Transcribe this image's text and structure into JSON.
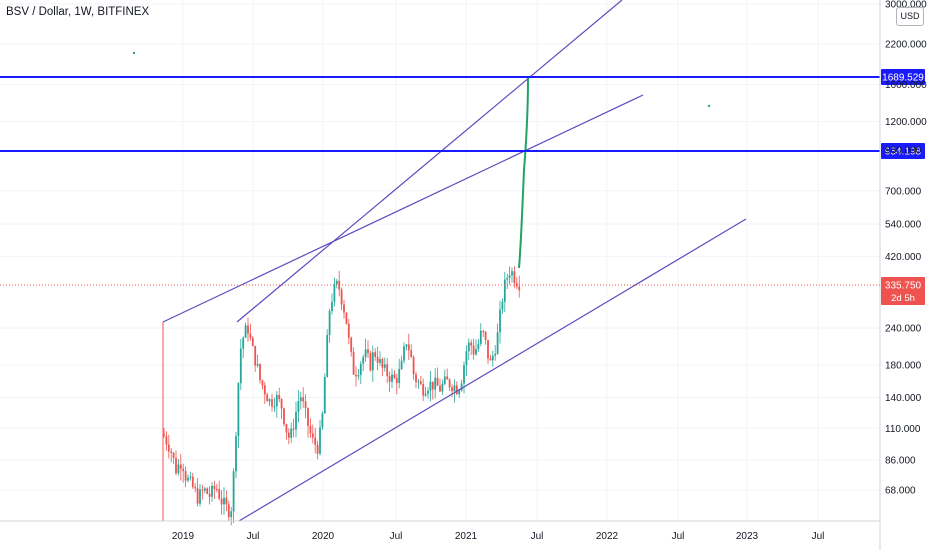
{
  "header": {
    "title": "BSV / Dollar, 1W, BITFINEX",
    "currency_label": "USD"
  },
  "colors": {
    "up": "#26a69a",
    "down": "#ef5350",
    "trendline": "#5b4cbf",
    "hline": "#1a1aff",
    "projection": "#21a366",
    "grid": "#f0f3fa",
    "axis_text": "#131722",
    "price_badge": "#ef5350"
  },
  "chart_data": {
    "type": "candlestick",
    "title": "BSV / Dollar, 1W, BITFINEX",
    "yscale": "log",
    "yunit": "USD",
    "ylim": [
      55,
      3000
    ],
    "x_ticks": [
      "2019",
      "Jul",
      "2020",
      "Jul",
      "2021",
      "Jul",
      "2022",
      "Jul",
      "2023",
      "Jul"
    ],
    "y_ticks": [
      3000,
      2200,
      1600,
      1200,
      960,
      700,
      540,
      420,
      335.75,
      240,
      180,
      140,
      110,
      86,
      68
    ],
    "y_tick_labels": [
      "3000.000",
      "2200.000",
      "1600.000",
      "1200.000",
      "960.000",
      "700.000",
      "540.000",
      "420.000",
      "335.750",
      "240.000",
      "180.000",
      "140.000",
      "110.000",
      "86.000",
      "68.000"
    ],
    "horizontal_levels": [
      {
        "value": 1689.529,
        "label": "1689.529"
      },
      {
        "value": 954.198,
        "label": "954.198"
      }
    ],
    "last_price": {
      "value": 335.75,
      "label": "335.750",
      "countdown": "2d 5h"
    },
    "grid": true
  }
}
